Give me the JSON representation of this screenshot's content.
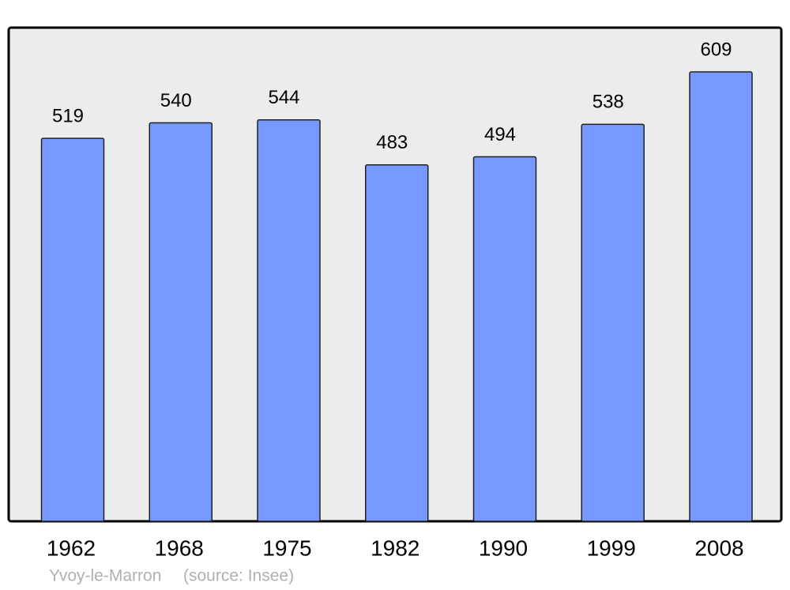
{
  "chart_data": {
    "type": "bar",
    "title": "Yvoy-le-Marron",
    "source": "(source: Insee)",
    "categories": [
      "1962",
      "1968",
      "1975",
      "1982",
      "1990",
      "1999",
      "2008"
    ],
    "values": [
      519,
      540,
      544,
      483,
      494,
      538,
      609
    ],
    "color": "#7799ff"
  }
}
